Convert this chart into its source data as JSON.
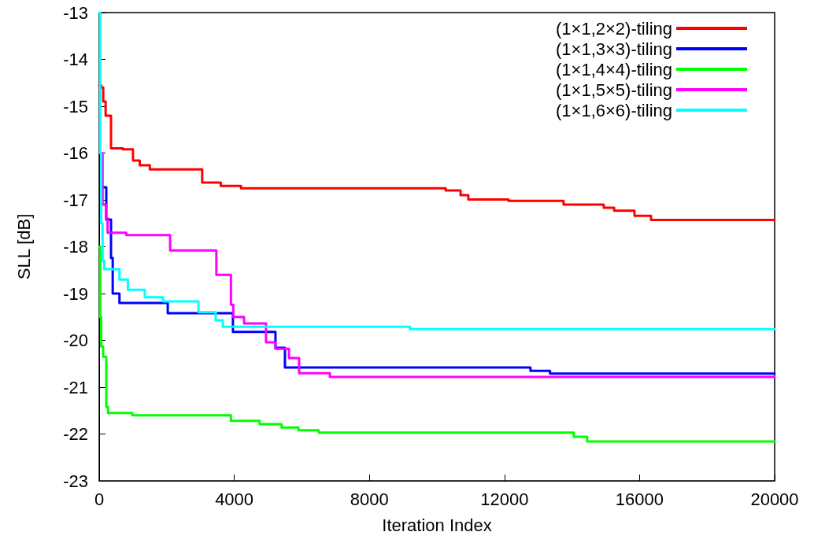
{
  "chart_data": {
    "type": "step",
    "xlabel": "Iteration Index",
    "ylabel": "SLL [dB]",
    "xlim": [
      0,
      20000
    ],
    "xticks": [
      0,
      4000,
      8000,
      12000,
      16000,
      20000
    ],
    "ylim": [
      -23,
      -13
    ],
    "yticks": [
      -23,
      -22,
      -21,
      -20,
      -19,
      -18,
      -17,
      -16,
      -15,
      -14,
      -13
    ],
    "grid": false,
    "legend": "top right",
    "marker": "none",
    "line_style": "solid",
    "series": [
      {
        "name": "(1×1,2×2)-tiling",
        "color": "#ff0000",
        "x": [
          0,
          60,
          120,
          190,
          350,
          700,
          1000,
          1200,
          1500,
          3050,
          3600,
          4200,
          10260,
          10700,
          10930,
          12120,
          13750,
          14940,
          15250,
          15850,
          16340,
          20000
        ],
        "values": [
          -14.55,
          -14.6,
          -14.9,
          -15.2,
          -15.9,
          -15.92,
          -16.16,
          -16.26,
          -16.35,
          -16.63,
          -16.7,
          -16.75,
          -16.8,
          -16.9,
          -16.99,
          -17.02,
          -17.1,
          -17.17,
          -17.23,
          -17.34,
          -17.43,
          -17.43
        ]
      },
      {
        "name": "(1×1,3×3)-tiling",
        "color": "#0000ff",
        "x": [
          100,
          210,
          350,
          400,
          600,
          2030,
          2900,
          3960,
          5220,
          5500,
          12770,
          13350,
          20000
        ],
        "values": [
          -16.73,
          -17.42,
          -18.24,
          -19.0,
          -19.2,
          -19.42,
          -19.42,
          -19.82,
          -20.16,
          -20.58,
          -20.65,
          -20.71,
          -20.71
        ]
      },
      {
        "name": "(1×1,4×4)-tiling",
        "color": "#00ff00",
        "x": [
          0,
          30,
          60,
          117,
          210,
          260,
          980,
          3900,
          4750,
          5400,
          5900,
          6500,
          14050,
          14450,
          20000
        ],
        "values": [
          -18.0,
          -19.5,
          -20.13,
          -20.35,
          -21.42,
          -21.55,
          -21.6,
          -21.72,
          -21.79,
          -21.86,
          -21.92,
          -21.97,
          -22.06,
          -22.16,
          -22.16
        ]
      },
      {
        "name": "(1×1,5×5)-tiling",
        "color": "#ff00ff",
        "x": [
          0,
          100,
          200,
          250,
          800,
          2100,
          3470,
          3900,
          3970,
          4290,
          4940,
          5220,
          5620,
          5920,
          6830,
          20000
        ],
        "values": [
          -16.0,
          -17.1,
          -17.39,
          -17.7,
          -17.75,
          -18.08,
          -18.6,
          -19.24,
          -19.5,
          -19.64,
          -20.04,
          -20.18,
          -20.38,
          -20.7,
          -20.78,
          -20.78
        ]
      },
      {
        "name": "(1×1,6×6)-tiling",
        "color": "#00ffff",
        "x": [
          0,
          30,
          60,
          100,
          150,
          600,
          850,
          1350,
          1890,
          2940,
          3450,
          3660,
          9200,
          20000
        ],
        "values": [
          -13.0,
          -16.0,
          -17.5,
          -18.3,
          -18.48,
          -18.7,
          -18.92,
          -19.08,
          -19.17,
          -19.4,
          -19.57,
          -19.71,
          -19.76,
          -19.76
        ]
      }
    ]
  }
}
